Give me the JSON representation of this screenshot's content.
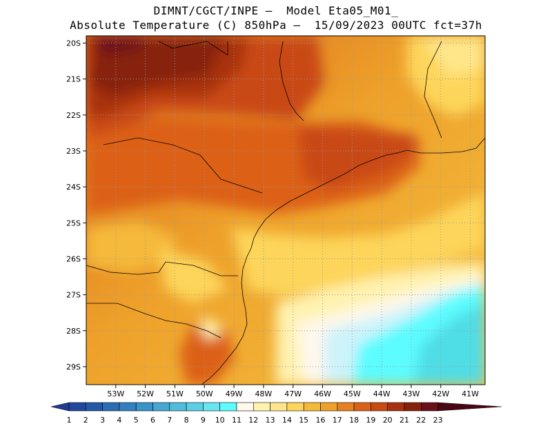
{
  "header": {
    "line1": "DIMNT/CGCT/INPE —  Model Eta05_M01_",
    "line2": "Absolute Temperature (C) 850hPa —  15/09/2023 00UTC fct=37h"
  },
  "map": {
    "lat_labels": [
      "20S",
      "21S",
      "22S",
      "23S",
      "24S",
      "25S",
      "26S",
      "27S",
      "28S",
      "29S"
    ],
    "lon_labels": [
      "53W",
      "52W",
      "51W",
      "50W",
      "49W",
      "48W",
      "47W",
      "46W",
      "45W",
      "44W",
      "43W",
      "42W",
      "41W"
    ],
    "lon_range": [
      -54,
      -40.5
    ],
    "lat_range": [
      -29.5,
      -19.8
    ],
    "grid": "dotted"
  },
  "colorbar": {
    "labels": [
      "1",
      "2",
      "3",
      "4",
      "5",
      "6",
      "7",
      "8",
      "9",
      "10",
      "11",
      "12",
      "13",
      "14",
      "15",
      "16",
      "17",
      "18",
      "19",
      "20",
      "21",
      "22",
      "23"
    ],
    "colors": [
      "#1f3a93",
      "#20469e",
      "#2458a8",
      "#2a6db5",
      "#3280bf",
      "#3a93c8",
      "#44a8d2",
      "#4ebcdb",
      "#5ad0e6",
      "#66e6f0",
      "#5cfcff",
      "#fff8ec",
      "#fff2b0",
      "#ffe68a",
      "#fdd55a",
      "#f5b93a",
      "#eea12a",
      "#e68020",
      "#dc6118",
      "#c94a12",
      "#a8320f",
      "#86220c",
      "#6a0f1a",
      "#4a0615"
    ]
  }
}
